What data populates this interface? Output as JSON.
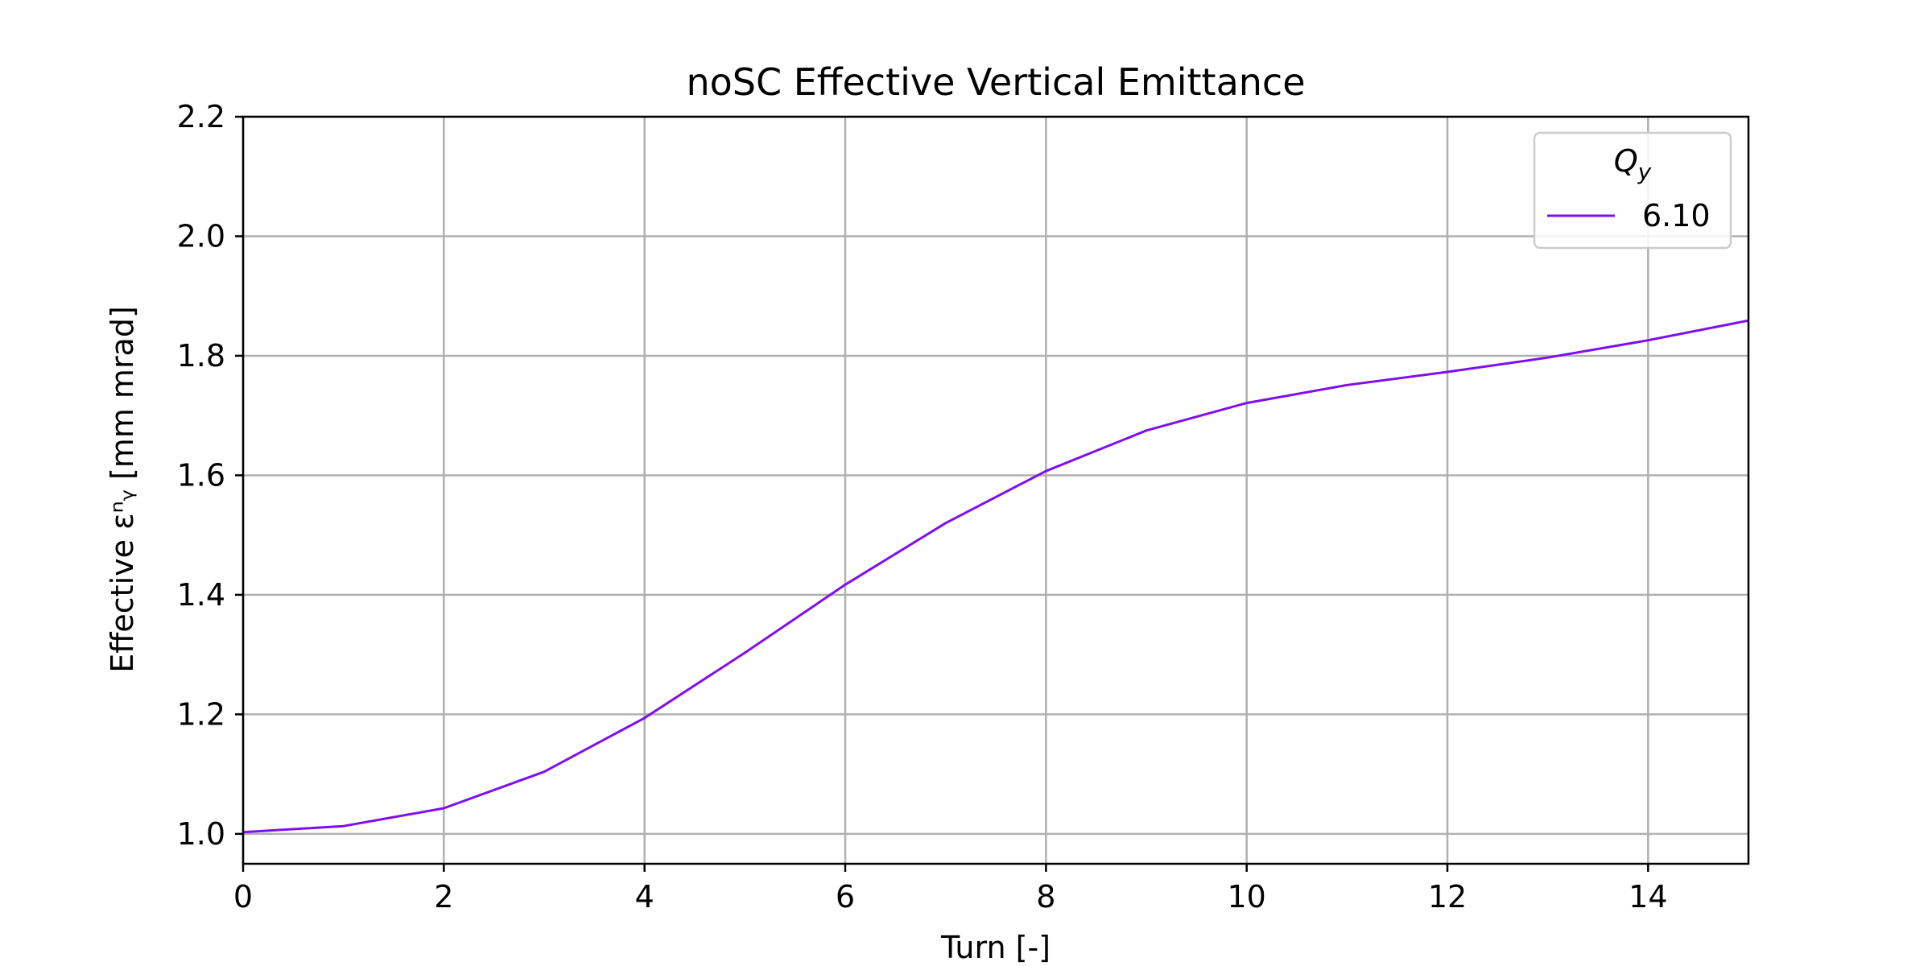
{
  "chart_data": {
    "type": "line",
    "title": "noSC Effective Vertical Emittance",
    "xlabel": "Turn [-]",
    "ylabel": "Effective εⁿᵧ [mm mrad]",
    "xlim": [
      0,
      15
    ],
    "ylim": [
      0.95,
      2.2
    ],
    "xticks": [
      0,
      2,
      4,
      6,
      8,
      10,
      12,
      14
    ],
    "yticks": [
      1.0,
      1.2,
      1.4,
      1.6,
      1.8,
      2.0,
      2.2
    ],
    "grid": true,
    "legend": {
      "title": "Q_y",
      "placement": "top-right"
    },
    "series": [
      {
        "name": "6.10",
        "color": "#7f0fef",
        "x": [
          0,
          1,
          2,
          3,
          4,
          5,
          6,
          7,
          8,
          9,
          10,
          11,
          12,
          13,
          14,
          15
        ],
        "y": [
          1.003,
          1.013,
          1.043,
          1.104,
          1.194,
          1.303,
          1.417,
          1.52,
          1.607,
          1.675,
          1.721,
          1.751,
          1.773,
          1.797,
          1.826,
          1.859
        ]
      }
    ]
  }
}
